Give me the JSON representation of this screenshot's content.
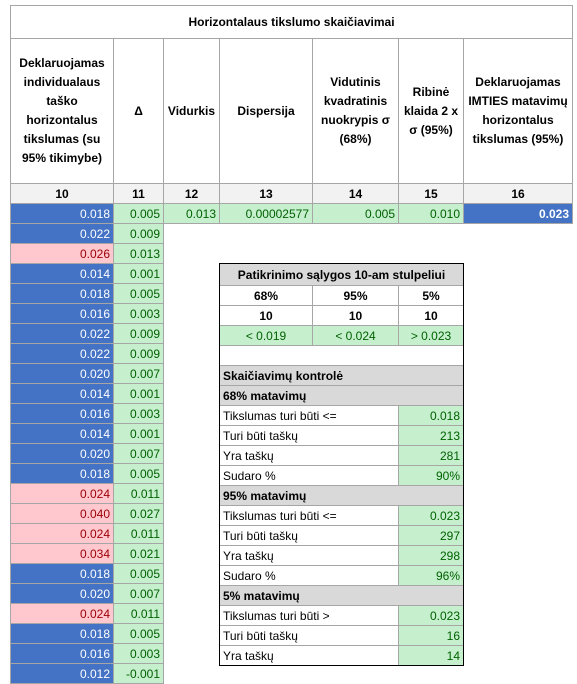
{
  "title": "Horizontalaus tikslumo skaičiavimai",
  "headers": [
    "Deklaruojamas individualaus taško horizontalus tikslumas (su 95% tikimybe)",
    "Δ",
    "Vidurkis",
    "Dispersija",
    "Vidutinis kvadratinis nuokrypis σ (68%)",
    "Ribinė klaida 2 x σ (95%)",
    "Deklaruojamas IMTIES matavimų horizontalus tikslumas (95%)"
  ],
  "column_numbers": [
    10,
    11,
    12,
    13,
    14,
    15,
    16
  ],
  "rows": [
    {
      "values": [
        "0.018",
        "0.005"
      ],
      "color": "#4472c4"
    },
    {
      "values": [
        "0.022",
        "0.009"
      ],
      "color": "#4472c4"
    },
    {
      "values": [
        "0.026",
        "0.013"
      ],
      "color": "#ffc7ce"
    },
    {
      "values": [
        "0.014",
        "0.001"
      ],
      "color": "#4472c4"
    },
    {
      "values": [
        "0.018",
        "0.005"
      ],
      "color": "#4472c4"
    },
    {
      "values": [
        "0.016",
        "0.003"
      ],
      "color": "#4472c4"
    },
    {
      "values": [
        "0.022",
        "0.009"
      ],
      "color": "#4472c4"
    },
    {
      "values": [
        "0.022",
        "0.009"
      ],
      "color": "#4472c4"
    },
    {
      "values": [
        "0.020",
        "0.007"
      ],
      "color": "#4472c4"
    },
    {
      "values": [
        "0.014",
        "0.001"
      ],
      "color": "#4472c4"
    },
    {
      "values": [
        "0.016",
        "0.003"
      ],
      "color": "#4472c4"
    },
    {
      "values": [
        "0.014",
        "0.001"
      ],
      "color": "#4472c4"
    },
    {
      "values": [
        "0.020",
        "0.007"
      ],
      "color": "#4472c4"
    },
    {
      "values": [
        "0.018",
        "0.005"
      ],
      "color": "#4472c4"
    },
    {
      "values": [
        "0.024",
        "0.011"
      ],
      "color": "#ffc7ce"
    },
    {
      "values": [
        "0.040",
        "0.027"
      ],
      "color": "#ffc7ce"
    },
    {
      "values": [
        "0.024",
        "0.011"
      ],
      "color": "#ffc7ce"
    },
    {
      "values": [
        "0.034",
        "0.021"
      ],
      "color": "#ffc7ce"
    },
    {
      "values": [
        "0.018",
        "0.005"
      ],
      "color": "#4472c4"
    },
    {
      "values": [
        "0.020",
        "0.007"
      ],
      "color": "#4472c4"
    },
    {
      "values": [
        "0.024",
        "0.011"
      ],
      "color": "#ffc7ce"
    },
    {
      "values": [
        "0.018",
        "0.005"
      ],
      "color": "#4472c4"
    },
    {
      "values": [
        "0.016",
        "0.003"
      ],
      "color": "#4472c4"
    },
    {
      "values": [
        "0.012",
        "-0.001"
      ],
      "color": "#4472c4"
    }
  ],
  "summary": [
    "0.013",
    "0.00002577",
    "0.005",
    "0.010",
    "0.023"
  ],
  "check_table": {
    "title": "Patikrinimo sąlygos 10-am stulpeliui",
    "headers": [
      "68%",
      "95%",
      "5%"
    ],
    "counts": [
      10,
      10,
      10
    ],
    "conditions": [
      "< 0.019",
      "< 0.024",
      "> 0.023"
    ]
  },
  "control": {
    "title": "Skaičiavimų kontrolė",
    "sections": [
      {
        "title": "68% matavimų",
        "rows": [
          {
            "label": "Tikslumas turi būti <=",
            "value": "0.018"
          },
          {
            "label": "Turi būti taškų",
            "value": "213"
          },
          {
            "label": "Yra taškų",
            "value": "281"
          },
          {
            "label": "Sudaro %",
            "value": "90%"
          }
        ]
      },
      {
        "title": "95% matavimų",
        "rows": [
          {
            "label": "Tikslumas turi būti <=",
            "value": "0.023"
          },
          {
            "label": "Turi būti taškų",
            "value": "297"
          },
          {
            "label": "Yra taškų",
            "value": "298"
          },
          {
            "label": "Sudaro %",
            "value": "96%"
          }
        ]
      },
      {
        "title": "5% matavimų",
        "rows": [
          {
            "label": "Tikslumas turi būti >",
            "value": "0.023"
          },
          {
            "label": "Turi būti taškų",
            "value": "16"
          },
          {
            "label": "Yra taškų",
            "value": "14"
          }
        ]
      }
    ]
  }
}
